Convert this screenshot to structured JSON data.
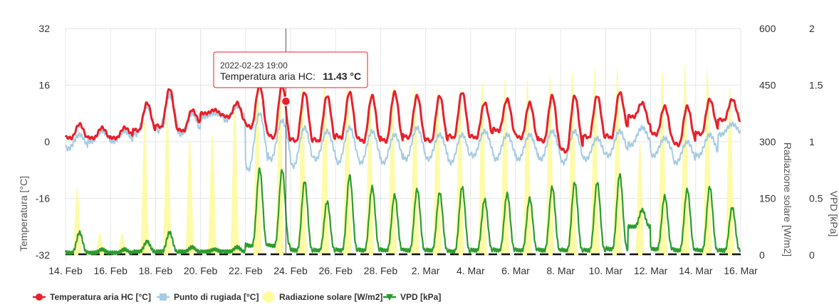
{
  "chart_data": {
    "type": "line",
    "x_tick_labels": [
      "14. Feb",
      "16. Feb",
      "18. Feb",
      "20. Feb",
      "22. Feb",
      "24. Feb",
      "26. Feb",
      "28. Feb",
      "2. Mar",
      "4. Mar",
      "6. Mar",
      "8. Mar",
      "10. Mar",
      "12. Mar",
      "14. Mar",
      "16. Mar"
    ],
    "x_range": [
      "2022-02-14",
      "2022-03-16"
    ],
    "grid": true,
    "legend_position": "bottom-left",
    "y_axes": [
      {
        "id": "temp",
        "label": "Temperatura [°C]",
        "ticks": [
          "32",
          "16",
          "0",
          "-16",
          "-32"
        ],
        "range": [
          -32,
          32
        ],
        "side": "left"
      },
      {
        "id": "rad",
        "label": "Radiazione solare [W/m2]",
        "ticks": [
          "600",
          "450",
          "300",
          "150",
          "0"
        ],
        "range": [
          0,
          600
        ],
        "side": "right"
      },
      {
        "id": "vpd",
        "label": "VPD [kPa]",
        "ticks": [
          "2",
          "1.5",
          "1",
          "0.5",
          "0"
        ],
        "range": [
          0,
          2
        ],
        "side": "right"
      }
    ],
    "series": [
      {
        "name": "Temperatura aria HC [°C]",
        "color": "#e8202a",
        "axis": "temp",
        "kind": "line",
        "marker": "circle"
      },
      {
        "name": "Punto di rugiada [°C]",
        "color": "#a6cbe3",
        "axis": "temp",
        "kind": "line",
        "marker": "square"
      },
      {
        "name": "Radiazione solare [W/m2]",
        "color": "#fdfb9e",
        "axis": "rad",
        "kind": "area",
        "marker": "circle"
      },
      {
        "name": "VPD [kPa]",
        "color": "#2c9c2c",
        "axis": "vpd",
        "kind": "line",
        "marker": "triangle"
      }
    ],
    "daily": [
      {
        "date": "2022-02-14",
        "t_max": 5,
        "t_min": 1,
        "dew_max": 2,
        "dew_min": -2,
        "rad_peak": 180,
        "vpd_max": 0.2,
        "vpd_min": 0.02
      },
      {
        "date": "2022-02-15",
        "t_max": 4,
        "t_min": 1,
        "dew_max": 3,
        "dew_min": 0,
        "rad_peak": 60,
        "vpd_max": 0.05,
        "vpd_min": 0.02
      },
      {
        "date": "2022-02-16",
        "t_max": 4,
        "t_min": 1,
        "dew_max": 3,
        "dew_min": 0,
        "rad_peak": 60,
        "vpd_max": 0.05,
        "vpd_min": 0.02
      },
      {
        "date": "2022-02-17",
        "t_max": 11,
        "t_min": 3,
        "dew_max": 10,
        "dew_min": 2,
        "rad_peak": 360,
        "vpd_max": 0.12,
        "vpd_min": 0.03
      },
      {
        "date": "2022-02-18",
        "t_max": 15,
        "t_min": 4,
        "dew_max": 13,
        "dew_min": 3,
        "rad_peak": 380,
        "vpd_max": 0.2,
        "vpd_min": 0.03
      },
      {
        "date": "2022-02-19",
        "t_max": 9,
        "t_min": 3,
        "dew_max": 8,
        "dew_min": 2,
        "rad_peak": 310,
        "vpd_max": 0.07,
        "vpd_min": 0.03
      },
      {
        "date": "2022-02-20",
        "t_max": 9,
        "t_min": 8,
        "dew_max": 8,
        "dew_min": 7,
        "rad_peak": 320,
        "vpd_max": 0.05,
        "vpd_min": 0.03
      },
      {
        "date": "2022-02-21",
        "t_max": 11,
        "t_min": 7,
        "dew_max": 10,
        "dew_min": 6,
        "rad_peak": 400,
        "vpd_max": 0.07,
        "vpd_min": 0.03
      },
      {
        "date": "2022-02-22",
        "t_max": 16,
        "t_min": 4,
        "dew_max": 8,
        "dew_min": -8,
        "rad_peak": 460,
        "vpd_max": 0.76,
        "vpd_min": 0.08
      },
      {
        "date": "2022-02-23",
        "t_max": 16,
        "t_min": 1,
        "dew_max": 6,
        "dew_min": -5,
        "rad_peak": 470,
        "vpd_max": 0.75,
        "vpd_min": 0.08
      },
      {
        "date": "2022-02-24",
        "t_max": 14,
        "t_min": 0,
        "dew_max": 4,
        "dew_min": -7,
        "rad_peak": 460,
        "vpd_max": 0.65,
        "vpd_min": 0.04
      },
      {
        "date": "2022-02-25",
        "t_max": 13,
        "t_min": 0,
        "dew_max": 3,
        "dew_min": -5,
        "rad_peak": 470,
        "vpd_max": 0.47,
        "vpd_min": 0.04
      },
      {
        "date": "2022-02-26",
        "t_max": 14,
        "t_min": 1,
        "dew_max": 4,
        "dew_min": -6,
        "rad_peak": 460,
        "vpd_max": 0.7,
        "vpd_min": 0.04
      },
      {
        "date": "2022-02-27",
        "t_max": 13,
        "t_min": 0,
        "dew_max": 3,
        "dew_min": -6,
        "rad_peak": 430,
        "vpd_max": 0.6,
        "vpd_min": 0.04
      },
      {
        "date": "2022-02-28",
        "t_max": 14,
        "t_min": 0,
        "dew_max": 2,
        "dew_min": -6,
        "rad_peak": 450,
        "vpd_max": 0.53,
        "vpd_min": 0.04
      },
      {
        "date": "2022-03-01",
        "t_max": 13,
        "t_min": 1,
        "dew_max": 4,
        "dew_min": -5,
        "rad_peak": 450,
        "vpd_max": 0.58,
        "vpd_min": 0.04
      },
      {
        "date": "2022-03-02",
        "t_max": 13,
        "t_min": 0,
        "dew_max": 2,
        "dew_min": -5,
        "rad_peak": 450,
        "vpd_max": 0.55,
        "vpd_min": 0.04
      },
      {
        "date": "2022-03-03",
        "t_max": 14,
        "t_min": 1,
        "dew_max": 2,
        "dew_min": -6,
        "rad_peak": 450,
        "vpd_max": 0.6,
        "vpd_min": 0.03
      },
      {
        "date": "2022-03-04",
        "t_max": 11,
        "t_min": 1,
        "dew_max": 3,
        "dew_min": -4,
        "rad_peak": 460,
        "vpd_max": 0.49,
        "vpd_min": 0.04
      },
      {
        "date": "2022-03-05",
        "t_max": 12,
        "t_min": 3,
        "dew_max": 2,
        "dew_min": -5,
        "rad_peak": 470,
        "vpd_max": 0.54,
        "vpd_min": 0.04
      },
      {
        "date": "2022-03-06",
        "t_max": 11,
        "t_min": 1,
        "dew_max": 2,
        "dew_min": -5,
        "rad_peak": 470,
        "vpd_max": 0.5,
        "vpd_min": 0.04
      },
      {
        "date": "2022-03-07",
        "t_max": 13,
        "t_min": 0,
        "dew_max": 3,
        "dew_min": -5,
        "rad_peak": 480,
        "vpd_max": 0.6,
        "vpd_min": 0.04
      },
      {
        "date": "2022-03-08",
        "t_max": 13,
        "t_min": -3,
        "dew_max": 3,
        "dew_min": -6,
        "rad_peak": 490,
        "vpd_max": 0.64,
        "vpd_min": 0.04
      },
      {
        "date": "2022-03-09",
        "t_max": 13,
        "t_min": 1,
        "dew_max": 1,
        "dew_min": -5,
        "rad_peak": 500,
        "vpd_max": 0.64,
        "vpd_min": 0.04
      },
      {
        "date": "2022-03-10",
        "t_max": 14,
        "t_min": 1,
        "dew_max": 3,
        "dew_min": -4,
        "rad_peak": 500,
        "vpd_max": 0.71,
        "vpd_min": 0.05
      },
      {
        "date": "2022-03-11",
        "t_max": 11,
        "t_min": 7,
        "dew_max": 4,
        "dew_min": -1,
        "rad_peak": 300,
        "vpd_max": 0.4,
        "vpd_min": 0.25
      },
      {
        "date": "2022-03-12",
        "t_max": 10,
        "t_min": 2,
        "dew_max": 1,
        "dew_min": -4,
        "rad_peak": 490,
        "vpd_max": 0.52,
        "vpd_min": 0.05
      },
      {
        "date": "2022-03-13",
        "t_max": 10,
        "t_min": -1,
        "dew_max": 0,
        "dew_min": -6,
        "rad_peak": 510,
        "vpd_max": 0.58,
        "vpd_min": 0.04
      },
      {
        "date": "2022-03-14",
        "t_max": 12,
        "t_min": 2,
        "dew_max": 2,
        "dew_min": -4,
        "rad_peak": 500,
        "vpd_max": 0.6,
        "vpd_min": 0.04
      },
      {
        "date": "2022-03-15",
        "t_max": 12,
        "t_min": 6,
        "dew_max": 5,
        "dew_min": 2,
        "rad_peak": 450,
        "vpd_max": 0.42,
        "vpd_min": 0.04
      }
    ],
    "tooltip": {
      "date": "2022-02-23 19:00",
      "series_label": "Temperatura aria HC:",
      "value_text": "11.43 °C",
      "value": 11.43
    }
  }
}
